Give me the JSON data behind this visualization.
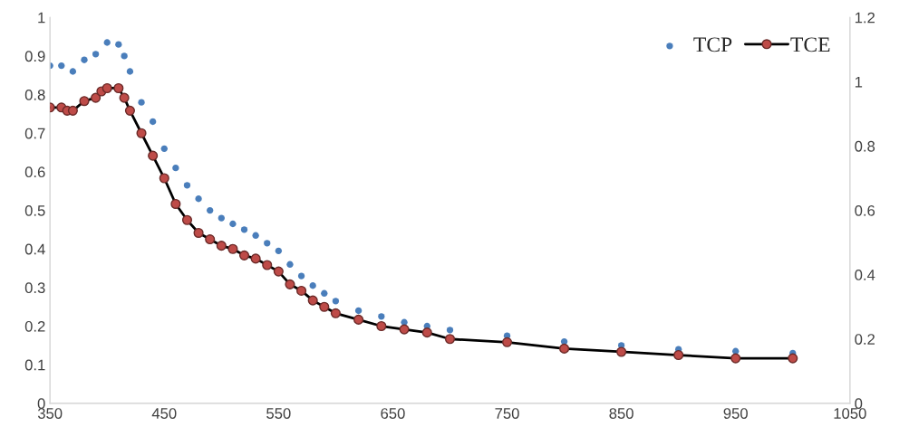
{
  "chart_data": {
    "type": "scatter",
    "legend": "top right",
    "grid": false,
    "xlim": [
      350,
      1050
    ],
    "xticks": [
      350,
      450,
      550,
      650,
      750,
      850,
      950,
      1050
    ],
    "ylim": [
      0,
      1
    ],
    "yticks": [
      0,
      0.1,
      0.2,
      0.3,
      0.4,
      0.5,
      0.6,
      0.7,
      0.8,
      0.9,
      1
    ],
    "y2lim": [
      0,
      1.2
    ],
    "y2ticks": [
      0,
      0.2,
      0.4,
      0.6,
      0.8,
      1,
      1.2
    ],
    "series": [
      {
        "name": "TCP",
        "marker": "circle",
        "color": "#4a7ebb",
        "x": [
          350,
          360,
          370,
          380,
          390,
          400,
          410,
          415,
          420,
          430,
          440,
          450,
          460,
          470,
          480,
          490,
          500,
          510,
          520,
          530,
          540,
          550,
          560,
          570,
          580,
          590,
          600,
          620,
          640,
          660,
          680,
          700,
          750,
          800,
          850,
          900,
          950,
          1000
        ],
        "values": [
          0.875,
          0.875,
          0.86,
          0.89,
          0.905,
          0.935,
          0.93,
          0.9,
          0.86,
          0.78,
          0.73,
          0.66,
          0.61,
          0.565,
          0.53,
          0.5,
          0.48,
          0.465,
          0.45,
          0.435,
          0.415,
          0.395,
          0.36,
          0.33,
          0.305,
          0.285,
          0.265,
          0.24,
          0.225,
          0.21,
          0.2,
          0.19,
          0.175,
          0.16,
          0.15,
          0.14,
          0.135,
          0.13
        ]
      },
      {
        "name": "TCE",
        "type": "line",
        "axis": "y2",
        "marker": "circle",
        "line_style": "solid",
        "color": "#be4b48",
        "x": [
          350,
          360,
          365,
          370,
          380,
          390,
          395,
          400,
          410,
          415,
          420,
          430,
          440,
          450,
          460,
          470,
          480,
          490,
          500,
          510,
          520,
          530,
          540,
          550,
          560,
          570,
          580,
          590,
          600,
          620,
          640,
          660,
          680,
          700,
          750,
          800,
          850,
          900,
          950,
          1000
        ],
        "values": [
          0.92,
          0.92,
          0.91,
          0.91,
          0.94,
          0.95,
          0.97,
          0.98,
          0.98,
          0.95,
          0.91,
          0.84,
          0.77,
          0.7,
          0.62,
          0.57,
          0.53,
          0.51,
          0.49,
          0.48,
          0.46,
          0.45,
          0.43,
          0.41,
          0.37,
          0.35,
          0.32,
          0.3,
          0.28,
          0.26,
          0.24,
          0.23,
          0.22,
          0.2,
          0.19,
          0.17,
          0.16,
          0.15,
          0.14,
          0.14
        ]
      }
    ]
  }
}
